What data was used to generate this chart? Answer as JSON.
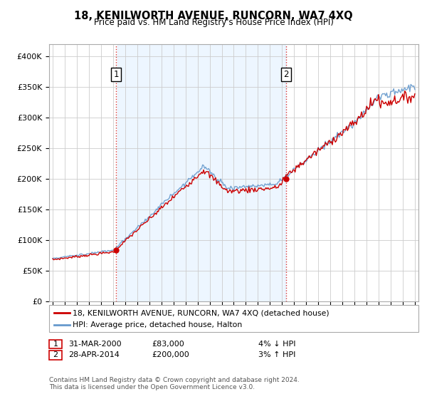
{
  "title": "18, KENILWORTH AVENUE, RUNCORN, WA7 4XQ",
  "subtitle": "Price paid vs. HM Land Registry's House Price Index (HPI)",
  "legend_line1": "18, KENILWORTH AVENUE, RUNCORN, WA7 4XQ (detached house)",
  "legend_line2": "HPI: Average price, detached house, Halton",
  "footer1": "Contains HM Land Registry data © Crown copyright and database right 2024.",
  "footer2": "This data is licensed under the Open Government Licence v3.0.",
  "annotation1_label": "1",
  "annotation1_date": "31-MAR-2000",
  "annotation1_price": "£83,000",
  "annotation1_hpi": "4% ↓ HPI",
  "annotation2_label": "2",
  "annotation2_date": "28-APR-2014",
  "annotation2_price": "£200,000",
  "annotation2_hpi": "3% ↑ HPI",
  "sale1_year": 2000.25,
  "sale1_price": 83000,
  "sale2_year": 2014.33,
  "sale2_price": 200000,
  "red_color": "#cc0000",
  "blue_color": "#6699cc",
  "fill_color": "#ddeeff",
  "background_color": "#ffffff",
  "grid_color": "#cccccc",
  "ylim": [
    0,
    420000
  ],
  "xlim_start": 1994.7,
  "xlim_end": 2025.3
}
